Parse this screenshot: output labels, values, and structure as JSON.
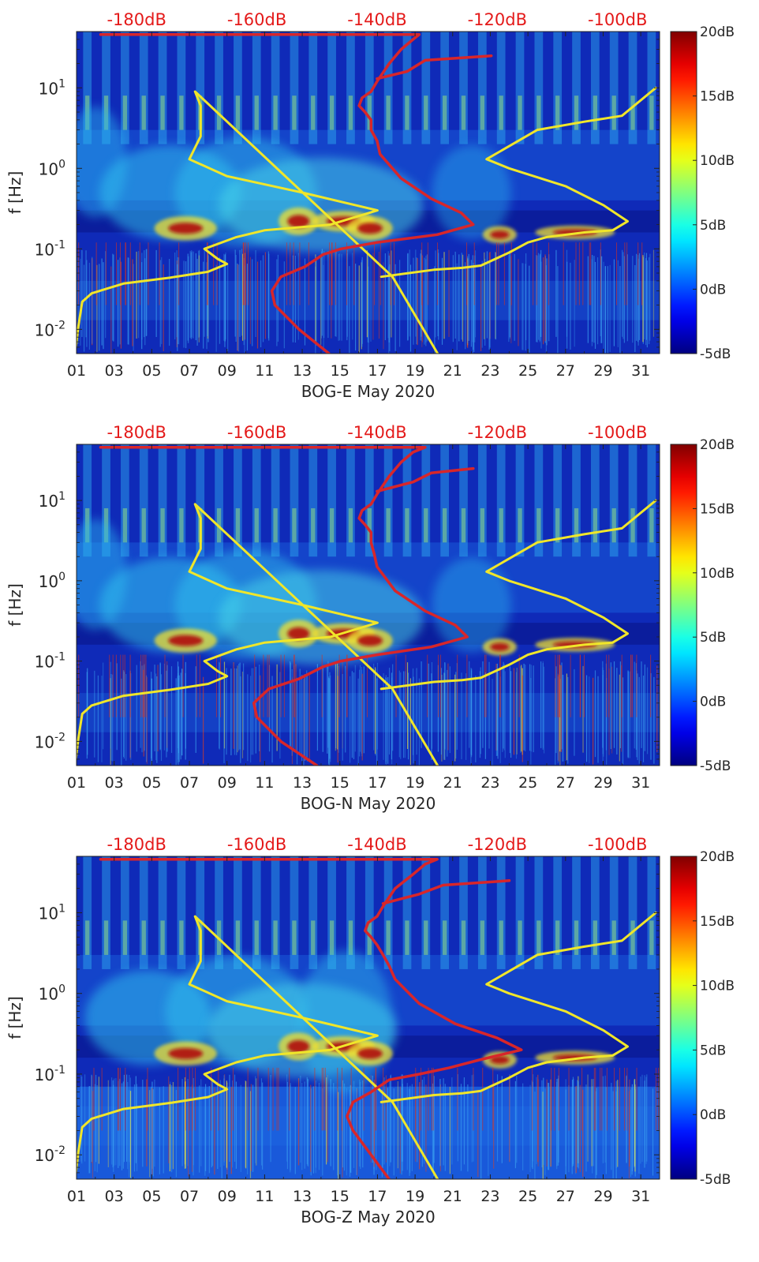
{
  "figure": {
    "panels": [
      "BOG-E May 2020",
      "BOG-N May 2020",
      "BOG-Z May 2020"
    ]
  },
  "chart_data": [
    {
      "type": "heatmap",
      "title": "",
      "xlabel": "BOG-E May 2020",
      "ylabel": "f [Hz]",
      "x_ticks": [
        "01",
        "03",
        "05",
        "07",
        "09",
        "11",
        "13",
        "15",
        "17",
        "19",
        "21",
        "23",
        "25",
        "27",
        "29",
        "31"
      ],
      "x_range_days": [
        1,
        32
      ],
      "y_scale": "log",
      "y_range_hz": [
        0.005,
        50
      ],
      "y_tick_labels": [
        "10^{-2}",
        "10^{-1}",
        "10^{0}",
        "10^{1}"
      ],
      "top_axis_ticks": [
        "-180dB",
        "-160dB",
        "-140dB",
        "-120dB",
        "-100dB"
      ],
      "top_axis_range_db": [
        -190,
        -93
      ],
      "colorbar": {
        "labels": [
          "20dB",
          "15dB",
          "10dB",
          "5dB",
          "0dB",
          "-5dB"
        ],
        "range_db": [
          -5,
          20
        ],
        "colormap": "jet"
      },
      "series": [
        {
          "color": "#f0e62a",
          "type": "line",
          "x_axis": "day",
          "points": [
            [
              0.9,
              0.0045
            ],
            [
              1.1,
              0.011
            ],
            [
              1.3,
              0.022
            ],
            [
              1.8,
              0.028
            ],
            [
              3.5,
              0.037
            ],
            [
              6,
              0.044
            ],
            [
              8,
              0.052
            ],
            [
              9,
              0.065
            ],
            [
              8.5,
              0.075
            ],
            [
              7.8,
              0.1
            ],
            [
              9.5,
              0.14
            ],
            [
              11,
              0.17
            ],
            [
              14.5,
              0.2
            ],
            [
              17,
              0.3
            ],
            [
              13,
              0.5
            ],
            [
              9,
              0.8
            ],
            [
              7,
              1.3
            ],
            [
              7.6,
              2.5
            ],
            [
              7.6,
              6
            ],
            [
              7.3,
              9
            ],
            [
              17.8,
              0.045
            ],
            [
              20.2,
              0.005
            ]
          ]
        },
        {
          "color": "#f0e62a",
          "type": "line",
          "x_axis": "day",
          "points": [
            [
              17.2,
              0.045
            ],
            [
              20,
              0.055
            ],
            [
              21.5,
              0.058
            ],
            [
              22.5,
              0.062
            ],
            [
              24,
              0.09
            ],
            [
              25,
              0.12
            ],
            [
              26,
              0.14
            ],
            [
              28,
              0.16
            ],
            [
              29.5,
              0.17
            ],
            [
              30.3,
              0.22
            ],
            [
              29,
              0.35
            ],
            [
              27,
              0.6
            ],
            [
              24,
              1
            ],
            [
              22.8,
              1.3
            ],
            [
              25.5,
              3
            ],
            [
              28,
              3.8
            ],
            [
              30,
              4.5
            ],
            [
              31.8,
              10
            ]
          ]
        },
        {
          "color": "#d8262a",
          "type": "line",
          "x_axis": "db",
          "points": [
            [
              -148,
              0.005
            ],
            [
              -153,
              0.01
            ],
            [
              -157,
              0.02
            ],
            [
              -157.5,
              0.03
            ],
            [
              -156,
              0.045
            ],
            [
              -152,
              0.06
            ],
            [
              -149,
              0.085
            ],
            [
              -146,
              0.1
            ],
            [
              -140,
              0.12
            ],
            [
              -130,
              0.15
            ],
            [
              -124,
              0.2
            ],
            [
              -126,
              0.28
            ],
            [
              -131,
              0.42
            ],
            [
              -136,
              0.75
            ],
            [
              -139.5,
              1.5
            ],
            [
              -140,
              2.2
            ],
            [
              -141,
              3
            ],
            [
              -141,
              4
            ],
            [
              -142,
              5
            ],
            [
              -143,
              6
            ],
            [
              -142.5,
              7.5
            ],
            [
              -141,
              9
            ],
            [
              -140,
              12
            ],
            [
              -138,
              20
            ],
            [
              -136,
              30
            ],
            [
              -134,
              40
            ],
            [
              -133,
              46
            ],
            [
              -162,
              46
            ],
            [
              -186,
              46
            ]
          ]
        },
        {
          "color": "#d8262a",
          "type": "line",
          "x_axis": "db",
          "points": [
            [
              -140,
              13
            ],
            [
              -135,
              16
            ],
            [
              -132,
              22
            ],
            [
              -121,
              25
            ]
          ]
        }
      ]
    },
    {
      "type": "heatmap",
      "title": "",
      "xlabel": "BOG-N May 2020",
      "ylabel": "f [Hz]",
      "x_ticks": [
        "01",
        "03",
        "05",
        "07",
        "09",
        "11",
        "13",
        "15",
        "17",
        "19",
        "21",
        "23",
        "25",
        "27",
        "29",
        "31"
      ],
      "x_range_days": [
        1,
        32
      ],
      "y_scale": "log",
      "y_range_hz": [
        0.005,
        50
      ],
      "y_tick_labels": [
        "10^{-2}",
        "10^{-1}",
        "10^{0}",
        "10^{1}"
      ],
      "top_axis_ticks": [
        "-180dB",
        "-160dB",
        "-140dB",
        "-120dB",
        "-100dB"
      ],
      "top_axis_range_db": [
        -190,
        -93
      ],
      "colorbar": {
        "labels": [
          "20dB",
          "15dB",
          "10dB",
          "5dB",
          "0dB",
          "-5dB"
        ],
        "range_db": [
          -5,
          20
        ],
        "colormap": "jet"
      },
      "series": [
        {
          "color": "#f0e62a",
          "type": "line",
          "x_axis": "day",
          "points": [
            [
              0.9,
              0.0045
            ],
            [
              1.1,
              0.011
            ],
            [
              1.3,
              0.022
            ],
            [
              1.8,
              0.028
            ],
            [
              3.5,
              0.037
            ],
            [
              6,
              0.044
            ],
            [
              8,
              0.052
            ],
            [
              9,
              0.065
            ],
            [
              8.5,
              0.075
            ],
            [
              7.8,
              0.1
            ],
            [
              9.5,
              0.14
            ],
            [
              11,
              0.17
            ],
            [
              14.5,
              0.2
            ],
            [
              17,
              0.3
            ],
            [
              13,
              0.5
            ],
            [
              9,
              0.8
            ],
            [
              7,
              1.3
            ],
            [
              7.6,
              2.5
            ],
            [
              7.6,
              6
            ],
            [
              7.3,
              9
            ],
            [
              17.8,
              0.045
            ],
            [
              20.2,
              0.005
            ]
          ]
        },
        {
          "color": "#f0e62a",
          "type": "line",
          "x_axis": "day",
          "points": [
            [
              17.2,
              0.045
            ],
            [
              20,
              0.055
            ],
            [
              21.5,
              0.058
            ],
            [
              22.5,
              0.062
            ],
            [
              24,
              0.09
            ],
            [
              25,
              0.12
            ],
            [
              26,
              0.14
            ],
            [
              28,
              0.16
            ],
            [
              29.5,
              0.17
            ],
            [
              30.3,
              0.22
            ],
            [
              29,
              0.35
            ],
            [
              27,
              0.6
            ],
            [
              24,
              1
            ],
            [
              22.8,
              1.3
            ],
            [
              25.5,
              3
            ],
            [
              28,
              3.8
            ],
            [
              30,
              4.5
            ],
            [
              31.8,
              10
            ]
          ]
        },
        {
          "color": "#d8262a",
          "type": "line",
          "x_axis": "db",
          "points": [
            [
              -150,
              0.005
            ],
            [
              -156,
              0.01
            ],
            [
              -160,
              0.02
            ],
            [
              -160.5,
              0.03
            ],
            [
              -158,
              0.045
            ],
            [
              -153,
              0.06
            ],
            [
              -149,
              0.085
            ],
            [
              -146,
              0.1
            ],
            [
              -140,
              0.12
            ],
            [
              -131,
              0.15
            ],
            [
              -125,
              0.2
            ],
            [
              -127,
              0.28
            ],
            [
              -132,
              0.42
            ],
            [
              -137,
              0.75
            ],
            [
              -140,
              1.5
            ],
            [
              -140.5,
              2.2
            ],
            [
              -141,
              3
            ],
            [
              -141,
              4
            ],
            [
              -142,
              5
            ],
            [
              -143,
              6
            ],
            [
              -142.5,
              7.5
            ],
            [
              -141,
              9
            ],
            [
              -140,
              12
            ],
            [
              -138,
              20
            ],
            [
              -136,
              30
            ],
            [
              -134,
              40
            ],
            [
              -132,
              46
            ],
            [
              -162,
              46
            ],
            [
              -186,
              46
            ]
          ]
        },
        {
          "color": "#d8262a",
          "type": "line",
          "x_axis": "db",
          "points": [
            [
              -140,
              13
            ],
            [
              -134,
              17
            ],
            [
              -131,
              22
            ],
            [
              -124,
              25
            ]
          ]
        }
      ]
    },
    {
      "type": "heatmap",
      "title": "",
      "xlabel": "BOG-Z May 2020",
      "ylabel": "f [Hz]",
      "x_ticks": [
        "01",
        "03",
        "05",
        "07",
        "09",
        "11",
        "13",
        "15",
        "17",
        "19",
        "21",
        "23",
        "25",
        "27",
        "29",
        "31"
      ],
      "x_range_days": [
        1,
        32
      ],
      "y_scale": "log",
      "y_range_hz": [
        0.005,
        50
      ],
      "y_tick_labels": [
        "10^{-2}",
        "10^{-1}",
        "10^{0}",
        "10^{1}"
      ],
      "top_axis_ticks": [
        "-180dB",
        "-160dB",
        "-140dB",
        "-120dB",
        "-100dB"
      ],
      "top_axis_range_db": [
        -190,
        -93
      ],
      "colorbar": {
        "labels": [
          "20dB",
          "15dB",
          "10dB",
          "5dB",
          "0dB",
          "-5dB"
        ],
        "range_db": [
          -5,
          20
        ],
        "colormap": "jet"
      },
      "series": [
        {
          "color": "#f0e62a",
          "type": "line",
          "x_axis": "day",
          "points": [
            [
              0.9,
              0.0045
            ],
            [
              1.1,
              0.011
            ],
            [
              1.3,
              0.022
            ],
            [
              1.8,
              0.028
            ],
            [
              3.5,
              0.037
            ],
            [
              6,
              0.044
            ],
            [
              8,
              0.052
            ],
            [
              9,
              0.065
            ],
            [
              8.5,
              0.075
            ],
            [
              7.8,
              0.1
            ],
            [
              9.5,
              0.14
            ],
            [
              11,
              0.17
            ],
            [
              14.5,
              0.2
            ],
            [
              17,
              0.3
            ],
            [
              13,
              0.5
            ],
            [
              9,
              0.8
            ],
            [
              7,
              1.3
            ],
            [
              7.6,
              2.5
            ],
            [
              7.6,
              6
            ],
            [
              7.3,
              9
            ],
            [
              17.8,
              0.045
            ],
            [
              20.2,
              0.005
            ]
          ]
        },
        {
          "color": "#f0e62a",
          "type": "line",
          "x_axis": "day",
          "points": [
            [
              17.2,
              0.045
            ],
            [
              20,
              0.055
            ],
            [
              21.5,
              0.058
            ],
            [
              22.5,
              0.062
            ],
            [
              24,
              0.09
            ],
            [
              25,
              0.12
            ],
            [
              26,
              0.14
            ],
            [
              28,
              0.16
            ],
            [
              29.5,
              0.17
            ],
            [
              30.3,
              0.22
            ],
            [
              29,
              0.35
            ],
            [
              27,
              0.6
            ],
            [
              24,
              1
            ],
            [
              22.8,
              1.3
            ],
            [
              25.5,
              3
            ],
            [
              28,
              3.8
            ],
            [
              30,
              4.5
            ],
            [
              31.8,
              10
            ]
          ]
        },
        {
          "color": "#d8262a",
          "type": "line",
          "x_axis": "db",
          "points": [
            [
              -138,
              0.005
            ],
            [
              -141,
              0.01
            ],
            [
              -144,
              0.02
            ],
            [
              -145,
              0.03
            ],
            [
              -144,
              0.045
            ],
            [
              -141,
              0.06
            ],
            [
              -138,
              0.085
            ],
            [
              -133,
              0.1
            ],
            [
              -128,
              0.12
            ],
            [
              -123,
              0.15
            ],
            [
              -116,
              0.2
            ],
            [
              -120,
              0.28
            ],
            [
              -127,
              0.42
            ],
            [
              -133,
              0.75
            ],
            [
              -137,
              1.5
            ],
            [
              -138,
              2.2
            ],
            [
              -139,
              3
            ],
            [
              -140,
              4
            ],
            [
              -141,
              5
            ],
            [
              -142,
              6
            ],
            [
              -141.5,
              7.5
            ],
            [
              -140,
              9
            ],
            [
              -139,
              12
            ],
            [
              -137,
              20
            ],
            [
              -134,
              30
            ],
            [
              -132,
              40
            ],
            [
              -130,
              46
            ],
            [
              -162,
              46
            ],
            [
              -186,
              46
            ]
          ]
        },
        {
          "color": "#d8262a",
          "type": "line",
          "x_axis": "db",
          "points": [
            [
              -139,
              13
            ],
            [
              -133,
              17
            ],
            [
              -129,
              22
            ],
            [
              -118,
              25
            ]
          ]
        }
      ]
    }
  ]
}
